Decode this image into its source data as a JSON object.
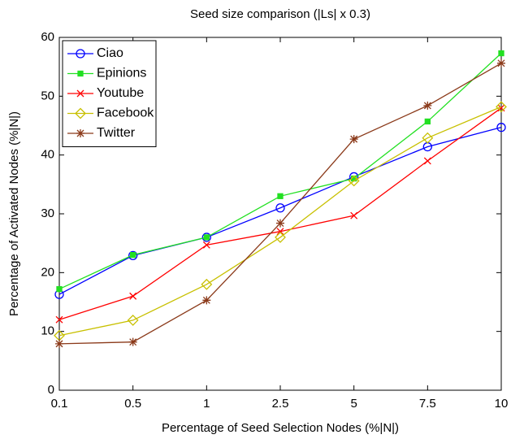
{
  "chart_data": {
    "type": "line",
    "title": "Seed size comparison (|Ls| x 0.3)",
    "x_label": "Percentage of Seed Selection Nodes (%|N|)",
    "y_label": "Percentage of Activated Nodes (%|N|)",
    "categories": [
      "0.1",
      "0.5",
      "1",
      "2.5",
      "5",
      "7.5",
      "10"
    ],
    "ylim": [
      0,
      60
    ],
    "yticks": [
      0,
      10,
      20,
      30,
      40,
      50,
      60
    ],
    "grid": false,
    "legend": "upper left",
    "series": [
      {
        "name": "Ciao",
        "color": "#0000ff",
        "marker": "circle",
        "values": [
          16.3,
          22.9,
          26.0,
          31.0,
          36.3,
          41.4,
          44.7
        ]
      },
      {
        "name": "Epinions",
        "color": "#22e022",
        "marker": "square",
        "values": [
          17.2,
          23.0,
          26.0,
          33.0,
          36.0,
          45.7,
          57.3
        ]
      },
      {
        "name": "Youtube",
        "color": "#ff0000",
        "marker": "x",
        "values": [
          12.0,
          16.0,
          24.7,
          27.0,
          29.7,
          39.0,
          48.0
        ]
      },
      {
        "name": "Facebook",
        "color": "#c8c000",
        "marker": "diamond",
        "values": [
          9.3,
          11.9,
          18.0,
          26.0,
          35.6,
          42.9,
          48.2
        ]
      },
      {
        "name": "Twitter",
        "color": "#8b3a1a",
        "marker": "star",
        "values": [
          7.9,
          8.2,
          15.3,
          28.4,
          42.7,
          48.4,
          55.6
        ]
      }
    ]
  }
}
